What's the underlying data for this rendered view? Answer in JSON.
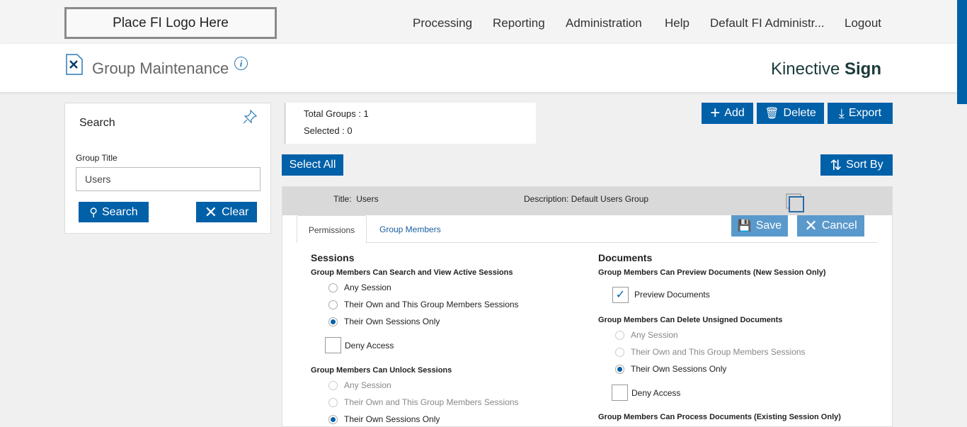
{
  "topbar": {
    "logo": "Place FI Logo Here",
    "nav": [
      "Processing",
      "Reporting",
      "Administration",
      "Help",
      "Default FI Administr...",
      "Logout"
    ]
  },
  "header": {
    "title": "Group Maintenance",
    "brand_light": "Kinective",
    "brand_bold": "Sign"
  },
  "search": {
    "title": "Search",
    "field_label": "Group Title",
    "field_value": "Users",
    "search_button": "Search",
    "clear_button": "Clear"
  },
  "summary": {
    "total": "Total Groups : 1",
    "selected": "Selected : 0"
  },
  "toolbar": {
    "add": "Add",
    "delete": "Delete",
    "export": "Export",
    "select_all": "Select All",
    "sort_by": "Sort By"
  },
  "group": {
    "title": "Title:  Users",
    "description": "Description: Default Users Group"
  },
  "tabs": [
    {
      "label": "Permissions",
      "active": true
    },
    {
      "label": "Group Members",
      "active": false
    }
  ],
  "actions": {
    "save": "Save",
    "cancel": "Cancel"
  },
  "sessions": {
    "heading": "Sessions",
    "view": {
      "label": "Group Members Can Search and View Active Sessions",
      "options": [
        "Any Session",
        "Their Own and This Group Members Sessions",
        "Their Own Sessions Only"
      ],
      "selected": 2,
      "deny": "Deny Access",
      "deny_checked": false
    },
    "unlock": {
      "label": "Group Members Can Unlock Sessions",
      "options": [
        "Any Session",
        "Their Own and This Group Members Sessions",
        "Their Own Sessions Only"
      ],
      "selected": 2,
      "disabled": true
    }
  },
  "documents": {
    "heading": "Documents",
    "preview": {
      "label": "Group Members Can Preview Documents (New Session Only)",
      "checkbox": "Preview Documents",
      "checked": true
    },
    "delete": {
      "label": "Group Members Can Delete Unsigned Documents",
      "options": [
        "Any Session",
        "Their Own and This Group Members Sessions",
        "Their Own Sessions Only"
      ],
      "selected": 2,
      "deny": "Deny Access",
      "deny_checked": false
    },
    "process": {
      "label": "Group Members Can Process Documents (Existing Session Only)"
    }
  },
  "colors": {
    "primary": "#0060a8",
    "disabled_button": "#5a99cc"
  }
}
